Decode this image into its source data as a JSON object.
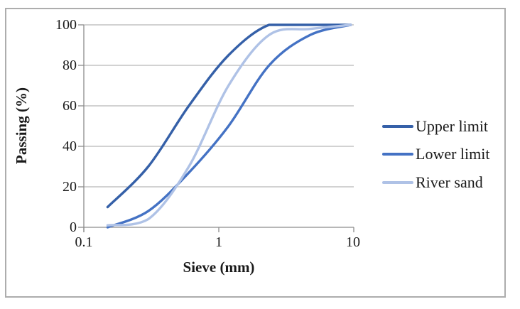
{
  "chart_data": {
    "type": "line",
    "x_scale": "log",
    "title": "",
    "xlabel": "Sieve (mm)",
    "ylabel": "Passing (%)",
    "xlim": [
      0.1,
      10
    ],
    "ylim": [
      0,
      100
    ],
    "x_ticks": [
      "0.1",
      "1",
      "10"
    ],
    "y_ticks": [
      "100",
      "80",
      "60",
      "40",
      "20",
      "0"
    ],
    "grid": "horizontal",
    "legend_position": "right",
    "line_style": "smooth",
    "series": [
      {
        "name": "Upper limit",
        "color": "#3560A8",
        "x": [
          0.15,
          0.3,
          0.6,
          1.18,
          2.36,
          4.75,
          9.5
        ],
        "y": [
          10,
          30,
          60,
          85,
          100,
          100,
          100
        ]
      },
      {
        "name": "Lower limit",
        "color": "#4472C4",
        "x": [
          0.15,
          0.3,
          0.6,
          1.18,
          2.36,
          4.75,
          9.5
        ],
        "y": [
          0,
          8,
          27,
          50,
          80,
          95,
          100
        ]
      },
      {
        "name": "River sand",
        "color": "#AFC2E6",
        "x": [
          0.15,
          0.3,
          0.6,
          1.18,
          2.36,
          4.75,
          9.5
        ],
        "y": [
          1,
          4,
          30,
          70,
          95,
          98,
          100
        ]
      }
    ]
  }
}
